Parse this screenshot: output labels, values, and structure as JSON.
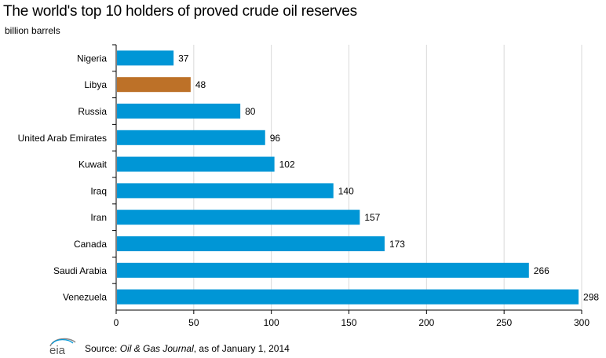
{
  "title": "The world's top 10 holders of proved crude oil reserves",
  "units": "billion barrels",
  "chart_data": {
    "type": "bar",
    "orientation": "horizontal",
    "categories": [
      "Nigeria",
      "Libya",
      "Russia",
      "United Arab Emirates",
      "Kuwait",
      "Iraq",
      "Iran",
      "Canada",
      "Saudi Arabia",
      "Venezuela"
    ],
    "values": [
      37,
      48,
      80,
      96,
      102,
      140,
      157,
      173,
      266,
      298
    ],
    "data_labels": [
      "37",
      "48",
      "80",
      "96",
      "102",
      "140",
      "157",
      "173",
      "266",
      "298"
    ],
    "highlight_category": "Libya",
    "xlim": [
      0,
      300
    ],
    "x_ticks": [
      0,
      50,
      100,
      150,
      200,
      250,
      300
    ],
    "grid": "vertical",
    "colors": {
      "bar": "#0096d6",
      "highlight": "#bd7128",
      "grid": "#d9d9d9",
      "axis": "#000000"
    }
  },
  "footer": {
    "logo_text": "eia",
    "source_prefix": "Source: ",
    "source_title": "Oil & Gas Journal",
    "source_suffix": ", as of January 1, 2014"
  }
}
